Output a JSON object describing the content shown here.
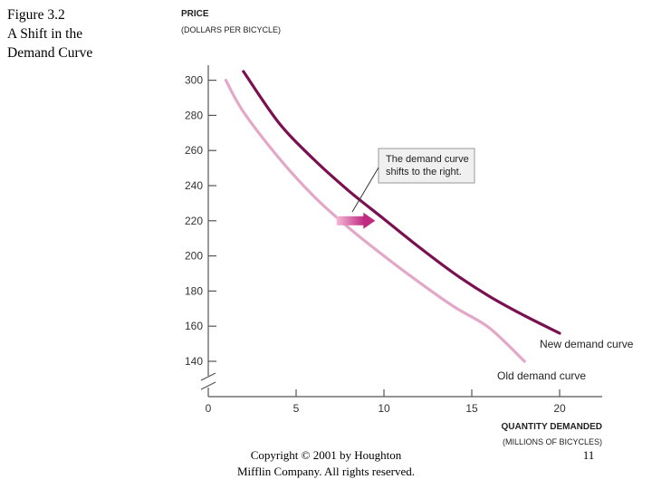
{
  "figure": {
    "title_lines": [
      "Figure 3.2",
      "A Shift in the",
      "Demand Curve"
    ]
  },
  "footer": {
    "copyright_lines": [
      "Copyright © 2001 by Houghton",
      "Mifflin Company. All rights reserved."
    ],
    "page_number": "11"
  },
  "chart_data": {
    "type": "line",
    "title": "A Shift in the Demand Curve",
    "ylabel": "Price",
    "ylabel_units": "(Dollars per bicycle)",
    "xlabel": "Quantity demanded",
    "xlabel_units": "(Millions of bicycles)",
    "xlim": [
      0,
      22
    ],
    "ylim": [
      130,
      310
    ],
    "axis_break": true,
    "x_ticks": [
      0,
      5,
      10,
      15,
      20
    ],
    "x_tick_labels": [
      "0",
      "5",
      "10",
      "15",
      "20"
    ],
    "y_ticks": [
      140,
      160,
      180,
      200,
      220,
      240,
      260,
      280,
      300
    ],
    "y_tick_labels": [
      "140",
      "160",
      "180",
      "200",
      "220",
      "240",
      "260",
      "280",
      "300"
    ],
    "grid": false,
    "series": [
      {
        "name": "New demand curve",
        "color": "#7a1050",
        "x": [
          2,
          4,
          6,
          8,
          10,
          12,
          14,
          16,
          18,
          20
        ],
        "values": [
          305,
          276,
          255,
          237,
          221,
          205,
          190,
          177,
          166,
          156
        ]
      },
      {
        "name": "Old demand curve",
        "color": "#e3a7c8",
        "x": [
          1,
          2,
          4,
          6,
          8,
          10,
          12,
          14,
          16,
          18
        ],
        "values": [
          300,
          282,
          256,
          234,
          216,
          200,
          185,
          171,
          159,
          140
        ]
      }
    ],
    "annotations": [
      {
        "text_lines": [
          "The demand curve",
          "shifts to the right."
        ],
        "arrow_from": [
          7.3,
          220
        ],
        "arrow_to": [
          9.5,
          220
        ]
      }
    ]
  }
}
